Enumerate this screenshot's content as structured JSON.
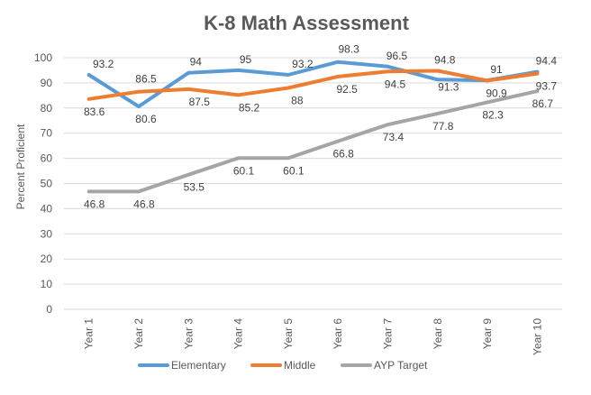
{
  "chart_data": {
    "type": "line",
    "title": "K-8 Math Assessment",
    "xlabel": "",
    "ylabel": "Percent Proficient",
    "categories": [
      "Year 1",
      "Year 2",
      "Year 3",
      "Year 4",
      "Year 5",
      "Year 6",
      "Year 7",
      "Year 8",
      "Year 9",
      "Year 10"
    ],
    "yticks": [
      "0",
      "10",
      "20",
      "30",
      "40",
      "50",
      "60",
      "70",
      "80",
      "90",
      "100"
    ],
    "ylim": [
      0,
      100
    ],
    "grid": true,
    "legend_position": "bottom",
    "series": [
      {
        "name": "Elementary",
        "color": "#5b9bd5",
        "values": [
          93.2,
          80.6,
          94,
          95,
          93.2,
          98.3,
          96.5,
          91.3,
          91,
          94.4
        ],
        "labels": [
          "93.2",
          "80.6",
          "94",
          "95",
          "93.2",
          "98.3",
          "96.5",
          "91.3",
          "91",
          "94.4"
        ]
      },
      {
        "name": "Middle",
        "color": "#ed7d31",
        "values": [
          83.6,
          86.5,
          87.5,
          85.2,
          88,
          92.5,
          94.5,
          94.8,
          90.9,
          93.7
        ],
        "labels": [
          "83.6",
          "86.5",
          "87.5",
          "85.2",
          "88",
          "92.5",
          "94.5",
          "94.8",
          "90.9",
          "93.7"
        ]
      },
      {
        "name": "AYP Target",
        "color": "#a5a5a5",
        "values": [
          46.8,
          46.8,
          53.5,
          60.1,
          60.1,
          66.8,
          73.4,
          77.8,
          82.3,
          86.7
        ],
        "labels": [
          "46.8",
          "46.8",
          "53.5",
          "60.1",
          "60.1",
          "66.8",
          "73.4",
          "77.8",
          "82.3",
          "86.7"
        ]
      }
    ]
  }
}
